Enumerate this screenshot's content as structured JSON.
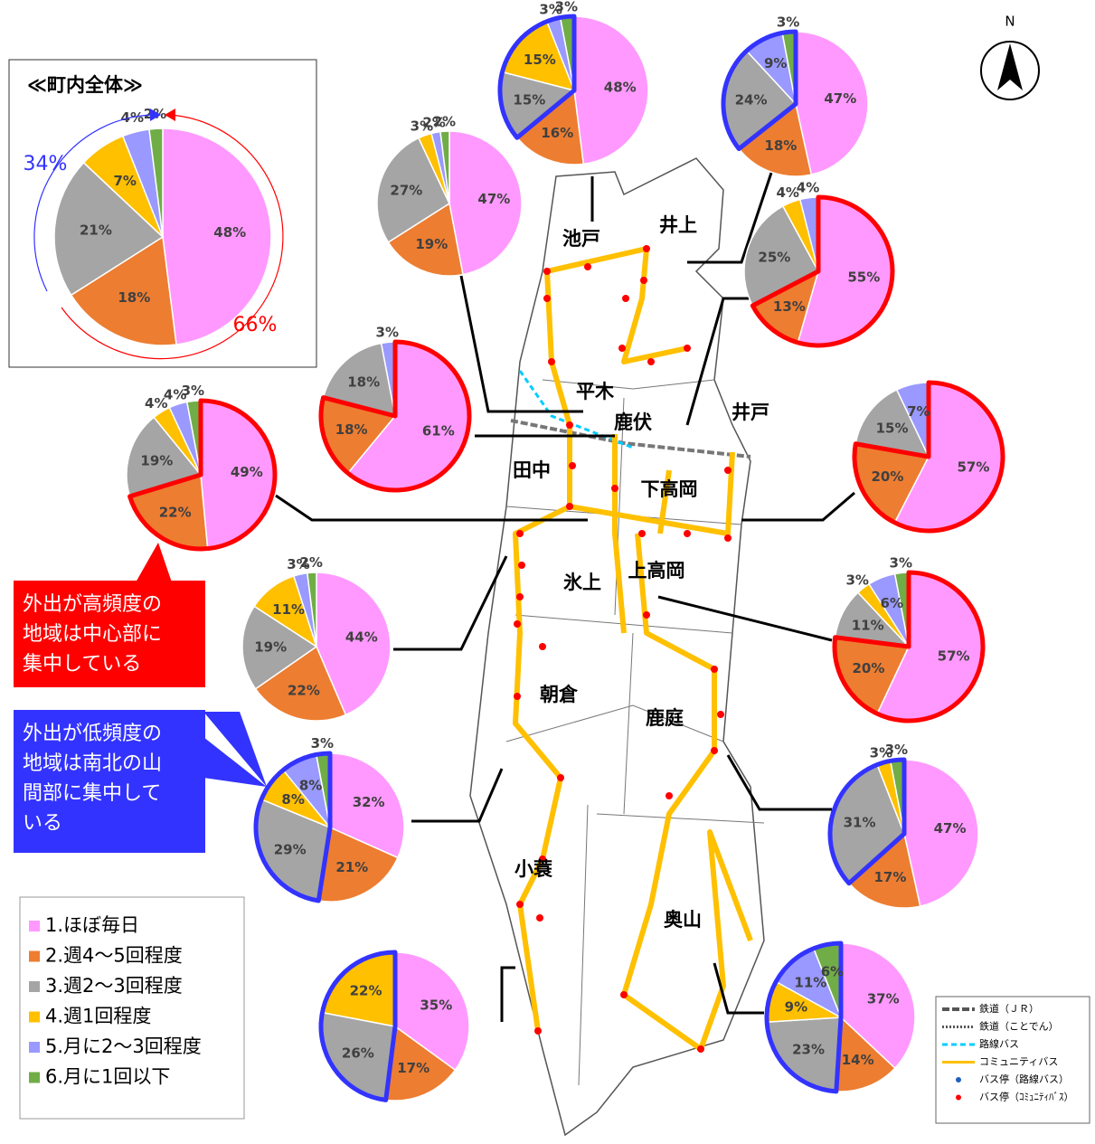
{
  "categories": [
    "1.ほぼ毎日",
    "2.週4～5回程度",
    "3.週2～3回程度",
    "4.週1回程度",
    "5.月に2～3回程度",
    "6.月に1回以下"
  ],
  "colors": [
    "#ff99ff",
    "#ed7d31",
    "#a5a5a5",
    "#ffc000",
    "#9999ff",
    "#70ad47"
  ],
  "pies": [
    {
      "title": "≪町内全体≫",
      "values": [
        48,
        18,
        21,
        7,
        4,
        2
      ],
      "value_labels": [
        "48%",
        "18%",
        "21%",
        "7%",
        "4%",
        "2%"
      ],
      "annotations": [
        {
          "text": "34%",
          "color": "#3333ff"
        },
        {
          "text": "66%",
          "color": "#ff0000"
        }
      ]
    },
    {
      "values": [
        48,
        16,
        15,
        15,
        3,
        3
      ],
      "value_labels": [
        "48%",
        "16%",
        "15%",
        "15%",
        "3%",
        "3%"
      ],
      "outline": {
        "color": "#3333ff",
        "from": 2,
        "to": 5
      }
    },
    {
      "values": [
        47,
        18,
        24,
        null,
        9,
        3
      ],
      "value_labels": [
        "47%",
        "18%",
        "24%",
        null,
        "9%",
        "3%"
      ],
      "outline": {
        "color": "#3333ff",
        "from": 2,
        "to": 5
      }
    },
    {
      "values": [
        47,
        19,
        27,
        3,
        2,
        2
      ],
      "value_labels": [
        "47%",
        "19%",
        "27%",
        "3%",
        "2%",
        "2%"
      ]
    },
    {
      "values": [
        55,
        13,
        25,
        4,
        4,
        null
      ],
      "value_labels": [
        "55%",
        "13%",
        "25%",
        "4%",
        "4%",
        null
      ],
      "outline": {
        "color": "#ff0000",
        "from": 0,
        "to": 1
      }
    },
    {
      "values": [
        61,
        18,
        18,
        null,
        3,
        null
      ],
      "value_labels": [
        "61%",
        "18%",
        "18%",
        null,
        "3%",
        null
      ],
      "outline": {
        "color": "#ff0000",
        "from": 0,
        "to": 1
      }
    },
    {
      "values": [
        49,
        22,
        19,
        4,
        4,
        3
      ],
      "value_labels": [
        "49%",
        "22%",
        "19%",
        "4%",
        "4%",
        "3%"
      ],
      "outline": {
        "color": "#ff0000",
        "from": 0,
        "to": 1
      }
    },
    {
      "values": [
        57,
        20,
        15,
        null,
        7,
        null
      ],
      "value_labels": [
        "57%",
        "20%",
        "15%",
        null,
        "7%",
        null
      ],
      "outline": {
        "color": "#ff0000",
        "from": 0,
        "to": 1
      }
    },
    {
      "values": [
        44,
        22,
        19,
        11,
        3,
        2
      ],
      "value_labels": [
        "44%",
        "22%",
        "19%",
        "11%",
        "3%",
        "2%"
      ]
    },
    {
      "values": [
        57,
        20,
        11,
        3,
        6,
        3
      ],
      "value_labels": [
        "57%",
        "20%",
        "11%",
        "3%",
        "6%",
        "3%"
      ],
      "outline": {
        "color": "#ff0000",
        "from": 0,
        "to": 1
      }
    },
    {
      "values": [
        32,
        21,
        29,
        8,
        8,
        3
      ],
      "value_labels": [
        "32%",
        "21%",
        "29%",
        "8%",
        "8%",
        "3%"
      ],
      "outline": {
        "color": "#3333ff",
        "from": 2,
        "to": 5
      }
    },
    {
      "values": [
        47,
        17,
        31,
        3,
        null,
        3
      ],
      "value_labels": [
        "47%",
        "17%",
        "31%",
        "3%",
        null,
        "3%"
      ],
      "outline": {
        "color": "#3333ff",
        "from": 2,
        "to": 5
      }
    },
    {
      "values": [
        35,
        17,
        26,
        22,
        null,
        null
      ],
      "value_labels": [
        "35%",
        "17%",
        "26%",
        "22%",
        null,
        null
      ],
      "outline": {
        "color": "#3333ff",
        "from": 2,
        "to": 3
      }
    },
    {
      "values": [
        37,
        14,
        23,
        9,
        11,
        6
      ],
      "value_labels": [
        "37%",
        "14%",
        "23%",
        "9%",
        "11%",
        "6%"
      ],
      "outline": {
        "color": "#3333ff",
        "from": 2,
        "to": 5
      }
    }
  ],
  "districts": [
    "池戸",
    "井上",
    "平木",
    "鹿伏",
    "井戸",
    "田中",
    "下高岡",
    "氷上",
    "上高岡",
    "朝倉",
    "鹿庭",
    "小蓑",
    "奥山"
  ],
  "callouts": [
    {
      "lines": [
        "外出が高頻度の",
        "地域は中心部に",
        "集中している"
      ],
      "color": "#ff0000"
    },
    {
      "lines": [
        "外出が低頻度の",
        "地域は南北の山",
        "間部に集中して",
        "いる"
      ],
      "color": "#3333ff"
    }
  ],
  "north": "N",
  "map_legend": [
    "鉄道（ＪＲ）",
    "鉄道（ことでん）",
    "路線バス",
    "コミュニティバス",
    "バス停（路線バス）",
    "バス停（ｺﾐｭﾆﾃｨﾊﾞｽ）"
  ]
}
